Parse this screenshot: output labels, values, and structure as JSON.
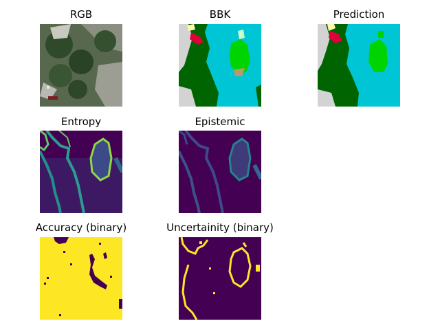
{
  "figure": {
    "panels": [
      {
        "title": "RGB",
        "kind": "aerial-photo"
      },
      {
        "title": "BBK",
        "kind": "class-map-ground-truth"
      },
      {
        "title": "Prediction",
        "kind": "class-map-prediction"
      },
      {
        "title": "Entropy",
        "kind": "uncertainty-heatmap"
      },
      {
        "title": "Epistemic",
        "kind": "uncertainty-heatmap"
      },
      {
        "title": "Accuracy (binary)",
        "kind": "binary-mask"
      },
      {
        "title": "Uncertainity (binary)",
        "kind": "binary-mask"
      }
    ]
  },
  "colors": {
    "dark_green": "#006400",
    "cyan": "#00c5d5",
    "grey": "#d3d3d3",
    "bright_green": "#00d400",
    "red": "#e0003a",
    "cream": "#fff7b0",
    "viridis_dark": "#440154",
    "viridis_mid": "#31688e",
    "viridis_teal": "#21908d",
    "viridis_light": "#5ec962",
    "viridis_yellow": "#fde725"
  }
}
